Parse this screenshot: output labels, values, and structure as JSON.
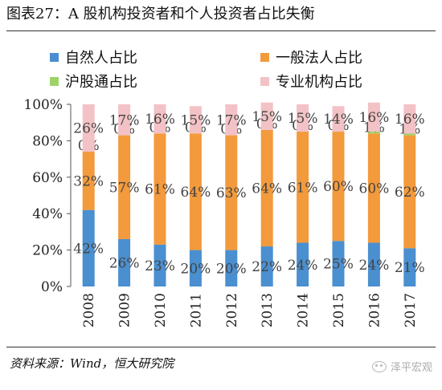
{
  "header": {
    "title": "图表27：A 股机构投资者和个人投资者占比失衡"
  },
  "footer": {
    "source": "资料来源：Wind，恒大研究院",
    "watermark": "泽平宏观"
  },
  "colors": {
    "individual": "#4a8fd0",
    "general_corporate": "#f39a3c",
    "northbound": "#9ed36a",
    "institutional": "#f3c2c6"
  },
  "chart_data": {
    "type": "bar",
    "stacked": true,
    "categories": [
      "2008",
      "2009",
      "2010",
      "2011",
      "2012",
      "2013",
      "2014",
      "2015",
      "2016",
      "2017"
    ],
    "series": [
      {
        "name": "自然人占比",
        "key": "individual",
        "values": [
          42,
          26,
          23,
          20,
          20,
          22,
          24,
          25,
          24,
          21
        ],
        "labels": [
          "42%",
          "26%",
          "23%",
          "20%",
          "20%",
          "22%",
          "24%",
          "25%",
          "24%",
          "21%"
        ]
      },
      {
        "name": "一般法人占比",
        "key": "general_corporate",
        "values": [
          32,
          57,
          61,
          64,
          63,
          64,
          61,
          60,
          60,
          62
        ],
        "labels": [
          "32%",
          "57%",
          "61%",
          "64%",
          "63%",
          "64%",
          "61%",
          "60%",
          "60%",
          "62%"
        ]
      },
      {
        "name": "沪股通占比",
        "key": "northbound",
        "values": [
          0,
          0,
          0,
          0,
          0,
          0,
          0,
          0,
          1,
          1
        ],
        "labels": [
          "0%",
          "0%",
          "0%",
          "0%",
          "0%",
          "0%",
          "0%",
          "0%",
          "1%",
          "1%"
        ]
      },
      {
        "name": "专业机构占比",
        "key": "institutional",
        "values": [
          26,
          17,
          16,
          15,
          17,
          15,
          15,
          14,
          16,
          16
        ],
        "labels": [
          "26%",
          "17%",
          "16%",
          "15%",
          "17%",
          "15%",
          "15%",
          "14%",
          "16%",
          "16%"
        ]
      }
    ],
    "ylim": [
      0,
      100
    ],
    "yticks": [
      "0%",
      "20%",
      "40%",
      "60%",
      "80%",
      "100%"
    ],
    "legend_position": "top",
    "grid": false
  }
}
